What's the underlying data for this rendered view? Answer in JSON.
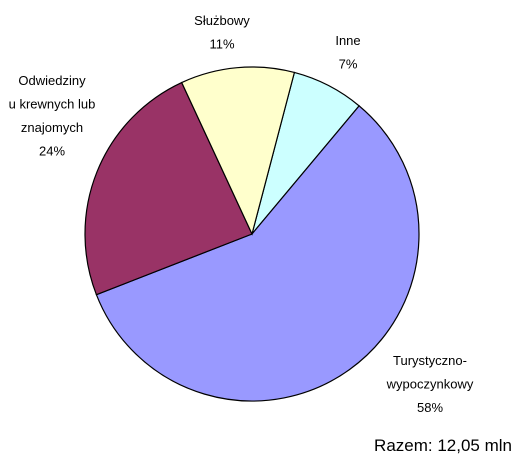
{
  "chart_data": {
    "type": "pie",
    "categories": [
      "Inne",
      "Turystyczno-\nwypoczynkowy",
      "Odwiedziny\nu krewnych lub\nznajomych",
      "Służbowy"
    ],
    "values": [
      7,
      58,
      24,
      11
    ],
    "value_labels": [
      "7%",
      "58%",
      "24%",
      "11%"
    ],
    "colors": [
      "#ccffff",
      "#9999ff",
      "#993366",
      "#ffffcc"
    ],
    "annotation": "Razem: 12,05 mln"
  }
}
